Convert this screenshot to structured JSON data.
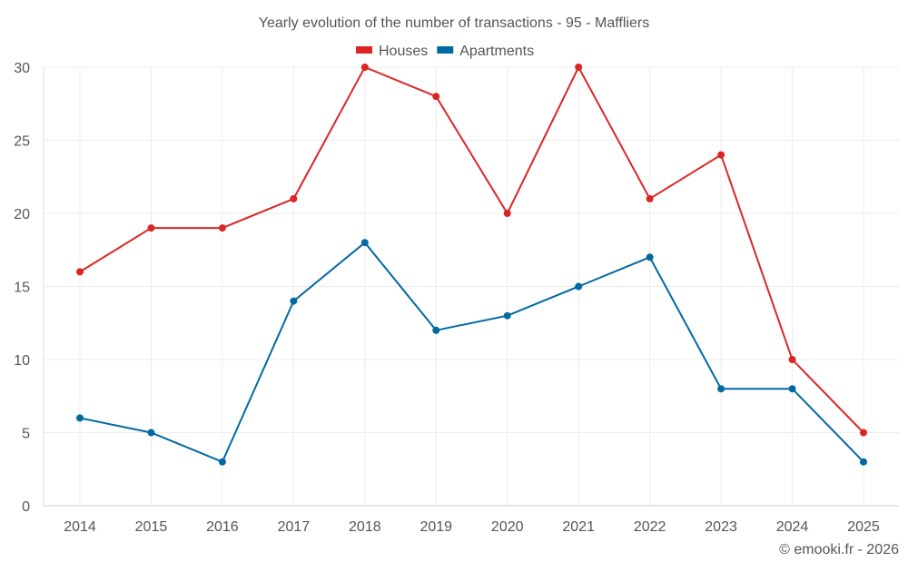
{
  "chart_data": {
    "type": "line",
    "title": "Yearly evolution of the number of transactions - 95 - Maffliers",
    "xlabel": "",
    "ylabel": "",
    "categories": [
      "2014",
      "2015",
      "2016",
      "2017",
      "2018",
      "2019",
      "2020",
      "2021",
      "2022",
      "2023",
      "2024",
      "2025"
    ],
    "ylim": [
      0,
      30
    ],
    "yticks": [
      0,
      5,
      10,
      15,
      20,
      25,
      30
    ],
    "grid": true,
    "legend_position": "top-center",
    "series": [
      {
        "name": "Houses",
        "color": "#dc2626",
        "values": [
          16,
          19,
          19,
          21,
          30,
          28,
          20,
          30,
          21,
          24,
          10,
          5
        ]
      },
      {
        "name": "Apartments",
        "color": "#0369a1",
        "values": [
          6,
          5,
          3,
          14,
          18,
          12,
          13,
          15,
          17,
          8,
          8,
          3
        ]
      }
    ],
    "credit": "© emooki.fr - 2026"
  }
}
